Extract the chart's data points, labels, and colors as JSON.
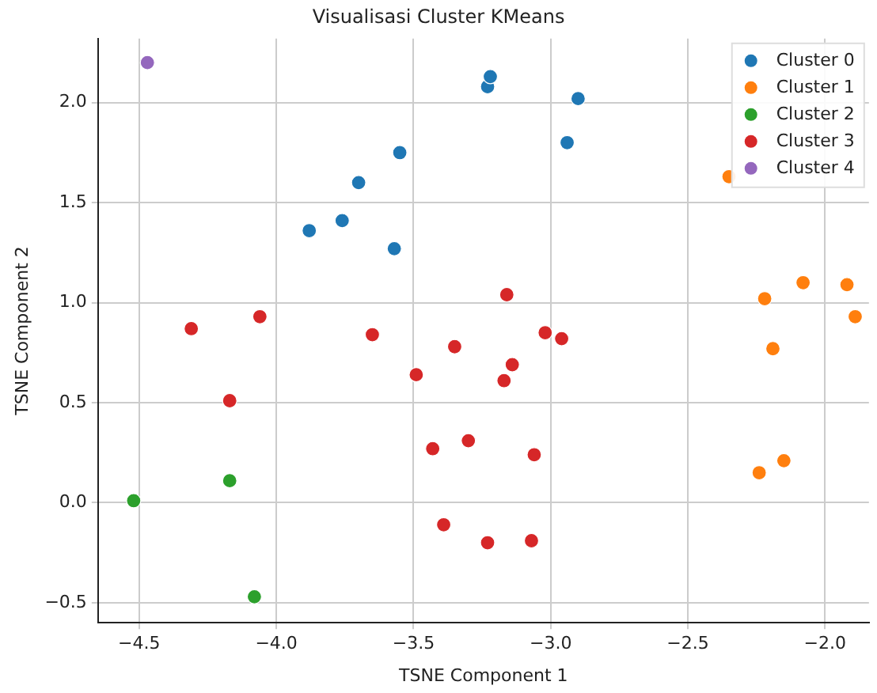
{
  "chart_data": {
    "type": "scatter",
    "title": "Visualisasi Cluster KMeans",
    "xlabel": "TSNE Component 1",
    "ylabel": "TSNE Component 2",
    "xlim": [
      -4.65,
      -1.84
    ],
    "ylim": [
      -0.6,
      2.32
    ],
    "xticks": [
      -4.5,
      {
        "value": -4,
        "label": "−4.0"
      },
      -3.5,
      {
        "value": -3,
        "label": "−3.0"
      },
      -2.5,
      {
        "value": -2,
        "label": "−2.0"
      }
    ],
    "yticks": [
      -0.5,
      {
        "value": 0,
        "label": "0.0"
      },
      0.5,
      {
        "value": 1,
        "label": "1.0"
      },
      1.5,
      {
        "value": 2,
        "label": "2.0"
      }
    ],
    "grid": true,
    "legend": "top right",
    "marker": "circle",
    "series": [
      {
        "name": "Cluster 0",
        "color": "#1f77b4",
        "x": [
          -3.88,
          -3.76,
          -3.7,
          -3.57,
          -3.55,
          -3.23,
          -3.22,
          -2.94,
          -2.9
        ],
        "values": [
          1.36,
          1.41,
          1.6,
          1.27,
          1.75,
          2.08,
          2.13,
          1.8,
          2.02
        ]
      },
      {
        "name": "Cluster 1",
        "color": "#ff7f0e",
        "x": [
          -2.35,
          -2.22,
          -2.08,
          -1.92,
          -1.89,
          -2.19,
          -2.24,
          -2.15
        ],
        "values": [
          1.63,
          1.02,
          1.1,
          1.09,
          0.93,
          0.77,
          0.15,
          0.21
        ]
      },
      {
        "name": "Cluster 2",
        "color": "#2ca02c",
        "x": [
          -4.52,
          -4.17,
          -4.08
        ],
        "values": [
          0.01,
          0.11,
          -0.47
        ]
      },
      {
        "name": "Cluster 3",
        "color": "#d62728",
        "x": [
          -4.31,
          -4.06,
          -4.17,
          -3.65,
          -3.49,
          -3.35,
          -3.16,
          -3.02,
          -2.96,
          -3.14,
          -3.17,
          -3.43,
          -3.3,
          -3.06,
          -3.39,
          -3.23,
          -3.07
        ],
        "values": [
          0.87,
          0.93,
          0.51,
          0.84,
          0.64,
          0.78,
          1.04,
          0.85,
          0.82,
          0.69,
          0.61,
          0.27,
          0.31,
          0.24,
          -0.11,
          -0.2,
          -0.19
        ]
      },
      {
        "name": "Cluster 4",
        "color": "#9467bd",
        "x": [
          -4.47
        ],
        "values": [
          2.2
        ]
      }
    ]
  }
}
